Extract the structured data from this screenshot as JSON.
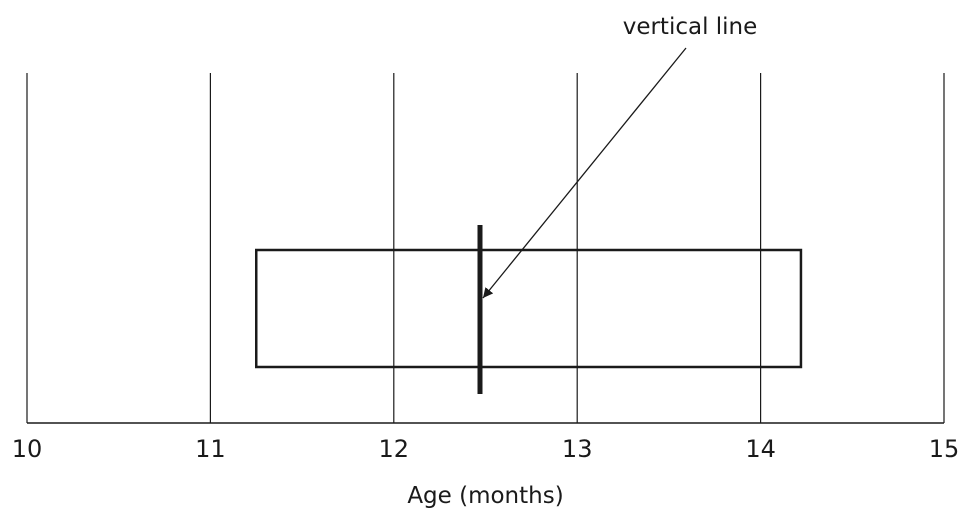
{
  "chart_data": {
    "type": "boxplot",
    "xlabel": "Age (months)",
    "xlim": [
      10,
      15
    ],
    "ticks": [
      10,
      11,
      12,
      13,
      14,
      15
    ],
    "tick_labels": [
      "10",
      "11",
      "12",
      "13",
      "14",
      "15"
    ],
    "grid": true,
    "box": {
      "q1": 11.25,
      "q3": 14.22,
      "marker": 12.47
    },
    "annotations": [
      {
        "text": "vertical line",
        "points_to": 12.47
      }
    ]
  },
  "colors": {
    "line": "#1a1a1a",
    "background": "#ffffff"
  }
}
